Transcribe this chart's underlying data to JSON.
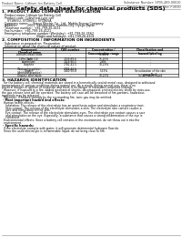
{
  "bg_color": "#ffffff",
  "header_top_left": "Product Name: Lithium Ion Battery Cell",
  "header_top_right": "Substance Number: SP05-489-00010\nEstablished / Revision: Dec.7.2010",
  "main_title": "Safety data sheet for chemical products (SDS)",
  "section1_title": "1. PRODUCT AND COMPANY IDENTIFICATION",
  "section1_lines": [
    " · Product name: Lithium Ion Battery Cell",
    " · Product code: Cylindrical-type cell",
    "      SY1865U, SY1865U, SY1865A",
    " · Company name:     Sanyo Electric Co., Ltd.  Mobile Energy Company",
    " · Address:           2001  Kamikosaka, Sumoto-City, Hyogo, Japan",
    " · Telephone number:  +81-799-26-4111",
    " · Fax number:  +81-799-26-4121",
    " · Emergency telephone number (Weekday): +81-799-26-3562",
    "                                      (Night and holidays): +81-799-26-4101"
  ],
  "section2_title": "2. COMPOSITION / INFORMATION ON INGREDIENTS",
  "section2_intro": " · Substance or preparation: Preparation",
  "section2_sub": " · Information about the chemical nature of product:",
  "table_headers": [
    "Chemical name",
    "CAS number",
    "Concentration /\nConcentration range",
    "Classification and\nhazard labeling"
  ],
  "table_subheader": "Component",
  "table_rows": [
    [
      "Lithium cobalt oxide\n(LiMn-Co-Ni-O2)",
      "-",
      "30-40%",
      "-"
    ],
    [
      "Iron",
      "7439-89-6",
      "15-25%",
      "-"
    ],
    [
      "Aluminium",
      "7429-90-5",
      "2-8%",
      "-"
    ],
    [
      "Graphite\n(Natural graphite)\n(Artificial graphite)",
      "7782-42-5\n7782-42-5",
      "10-25%",
      "-"
    ],
    [
      "Copper",
      "7440-50-8",
      "5-15%",
      "Sensitization of the skin\ngroup No.2"
    ],
    [
      "Organic electrolyte",
      "-",
      "10-25%",
      "Inflammable liquid"
    ]
  ],
  "section3_title": "3. HAZARDS IDENTIFICATION",
  "section3_para": [
    "  For the battery cell, chemical materials are stored in a hermetically sealed metal case, designed to withstand",
    "temperatures in various conditions during normal use. As a result, during normal use, there is no",
    "physical danger of ignition or explosion and there is no danger of hazardous materials leakage.",
    "  However, if exposed to a fire, added mechanical shocks, decomposed, emitted electric shock by miss-use,",
    "the gas release vent will be operated. The battery cell case will be breached of fire-portions, hazardous",
    "materials may be released.",
    "  Moreover, if heated strongly by the surrounding fire, ionic gas may be emitted."
  ],
  "section3_sub1": " · Most important hazard and effects:",
  "section3_sub1_lines": [
    "  Human health effects:",
    "    Inhalation: The release of the electrolyte has an anesthesia action and stimulates a respiratory tract.",
    "    Skin contact: The release of the electrolyte stimulates a skin. The electrolyte skin contact causes a",
    "    sore and stimulation on the skin.",
    "    Eye contact: The release of the electrolyte stimulates eyes. The electrolyte eye contact causes a sore",
    "    and stimulation on the eye. Especially, a substance that causes a strong inflammation of the eye is",
    "    contained.",
    "  Environmental effects: Since a battery cell remains in the environment, do not throw out it into the",
    "  environment."
  ],
  "section3_sub2": " · Specific hazards:",
  "section3_sub2_lines": [
    "  If the electrolyte contacts with water, it will generate detrimental hydrogen fluoride.",
    "  Since the used electrolyte is inflammable liquid, do not bring close to fire."
  ]
}
